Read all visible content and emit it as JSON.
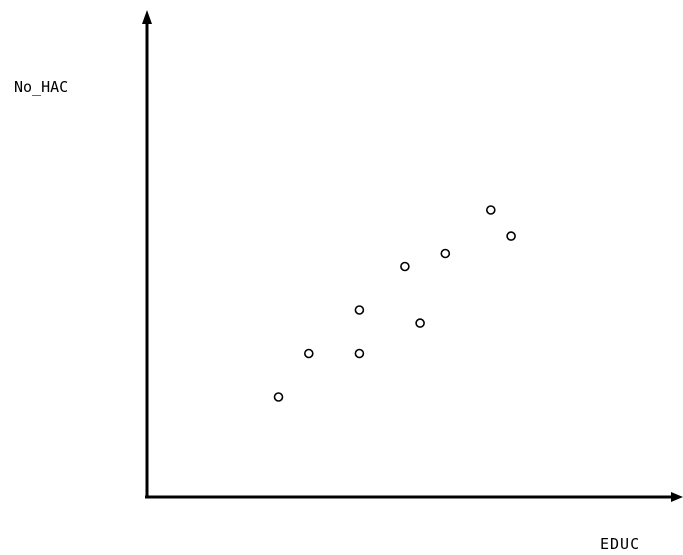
{
  "chart_data": {
    "type": "scatter",
    "xlabel": "EDUC",
    "ylabel": "No_HAC",
    "grid": false,
    "legend": "none",
    "colors": {
      "axis": "#000000",
      "marker": "#000000"
    },
    "series": [
      {
        "x": [
          1.3,
          1.6,
          2.1,
          2.1,
          2.55,
          2.7,
          2.95,
          3.4,
          3.6
        ],
        "y": [
          1.05,
          1.55,
          1.55,
          2.05,
          2.55,
          1.9,
          2.7,
          3.2,
          2.9
        ]
      }
    ],
    "xlim": [
      0,
      5.3
    ],
    "ylim": [
      -0.1,
      5.5
    ]
  }
}
